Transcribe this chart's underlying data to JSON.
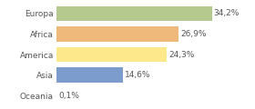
{
  "categories": [
    "Europa",
    "Africa",
    "America",
    "Asia",
    "Oceania"
  ],
  "values": [
    34.2,
    26.9,
    24.3,
    14.6,
    0.1
  ],
  "labels": [
    "34,2%",
    "26,9%",
    "24,3%",
    "14,6%",
    "0,1%"
  ],
  "bar_colors": [
    "#b5c98e",
    "#f0b97c",
    "#fde98c",
    "#7b9ccc",
    "#cccccc"
  ],
  "background_color": "#ffffff",
  "xlim": [
    0,
    42
  ],
  "bar_height": 0.72,
  "label_fontsize": 6.5,
  "tick_fontsize": 6.5
}
